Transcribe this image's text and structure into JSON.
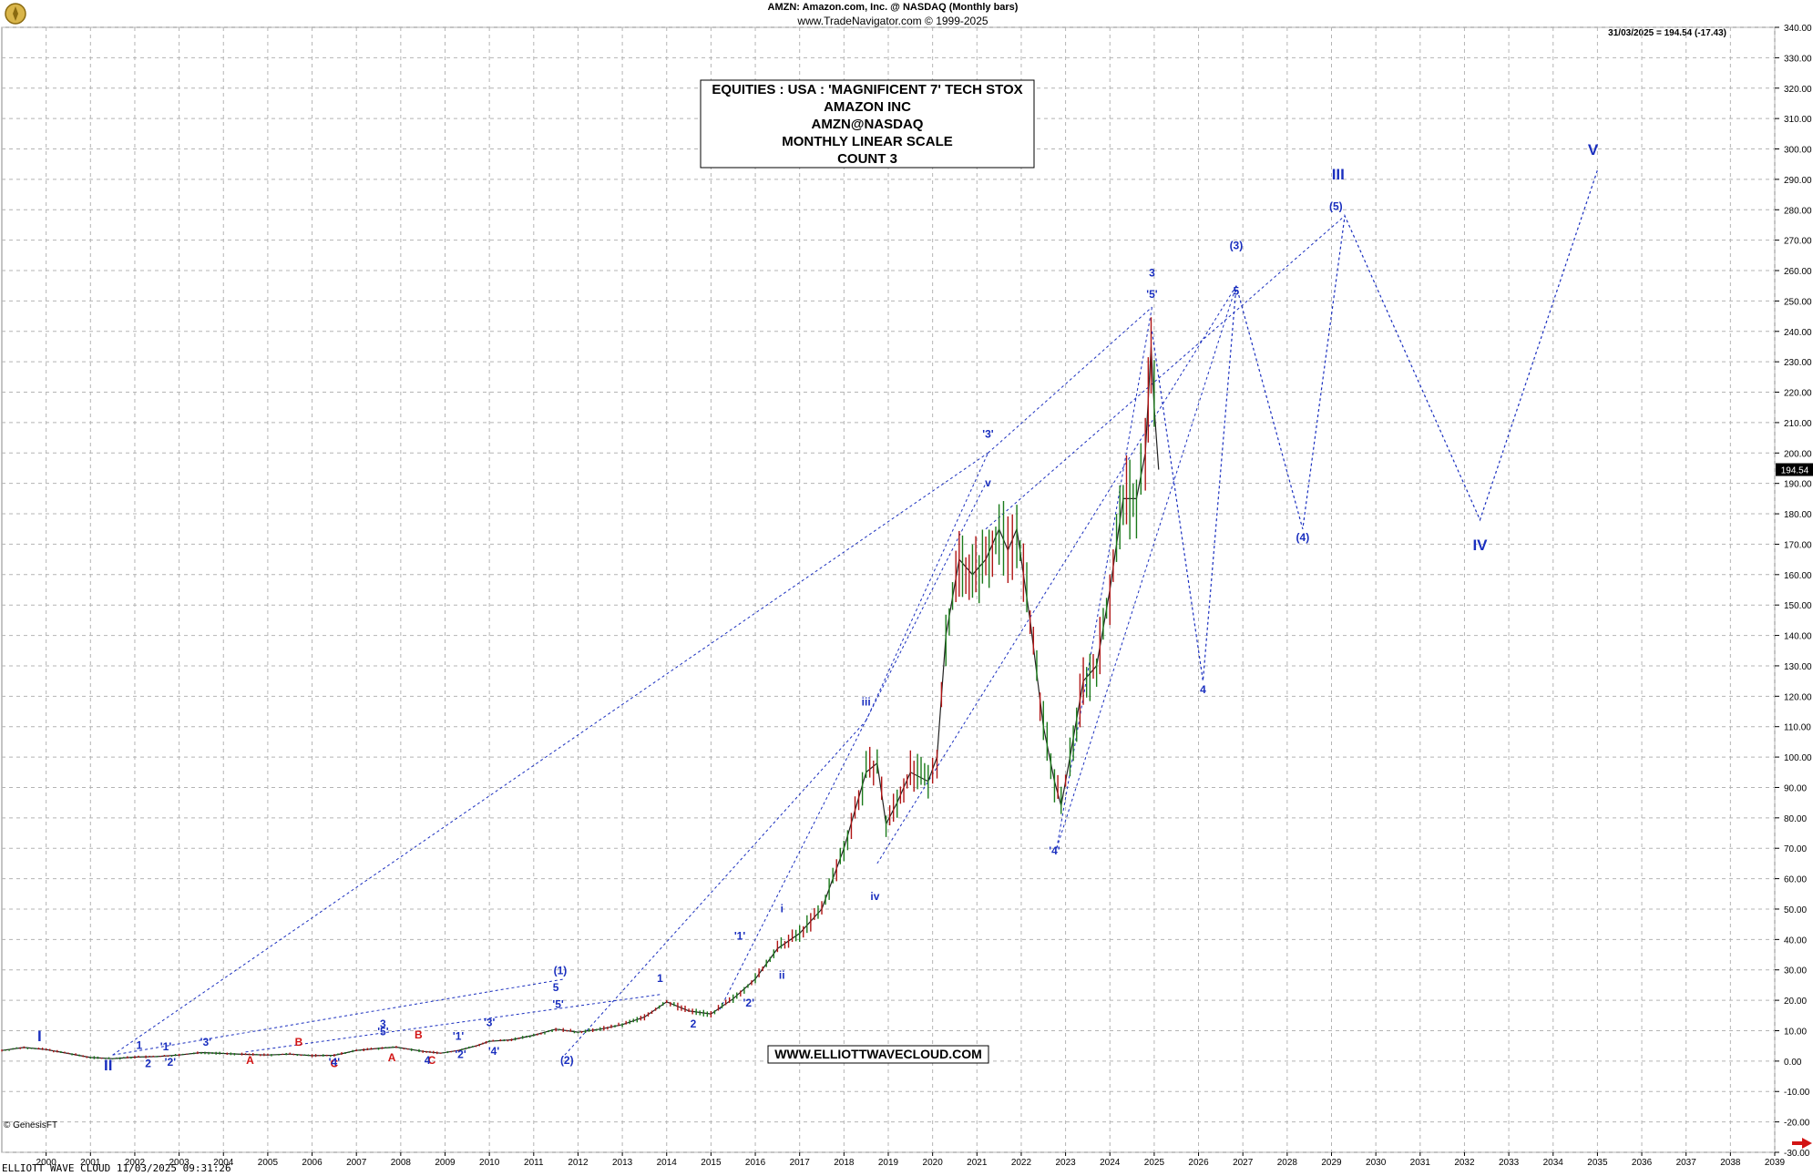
{
  "header": {
    "line1": "AMZN:  Amazon.com, Inc. @ NASDAQ  (Monthly bars)",
    "line2": "www.TradeNavigator.com © 1999-2025"
  },
  "last_value_label": "31/03/2025 = 194.54 (-17.43)",
  "price_badge": "194.54",
  "footer": "ELLIOTT WAVE CLOUD    11/03/2025 09:31:26",
  "corner_label": "© GenesisFT",
  "colors": {
    "wave_blue": "#1a2fbf",
    "wave_red": "#d21414",
    "grid": "#b4b4b4",
    "bar_up": "#1a7a1a",
    "bar_down": "#b01414",
    "arrow": "#d21414"
  },
  "chart_data": {
    "type": "line",
    "scale": "linear",
    "grid": true,
    "title_box": [
      "EQUITIES : USA : 'MAGNIFICENT 7' TECH STOX",
      "AMAZON INC",
      "AMZN@NASDAQ",
      "MONTHLY LINEAR SCALE",
      "COUNT 3"
    ],
    "watermark": "WWW.ELLIOTTWAVECLOUD.COM",
    "x_ticks": [
      "2000",
      "2001",
      "2002",
      "2003",
      "2004",
      "2005",
      "2006",
      "2007",
      "2008",
      "2009",
      "2010",
      "2011",
      "2012",
      "2013",
      "2014",
      "2015",
      "2016",
      "2017",
      "2018",
      "2019",
      "2020",
      "2021",
      "2022",
      "2023",
      "2024",
      "2025",
      "2026",
      "2027",
      "2028",
      "2029",
      "2030",
      "2031",
      "2032",
      "2033",
      "2034",
      "2035",
      "2036",
      "2037",
      "2038",
      "2039"
    ],
    "xlim": [
      1999.0,
      2039.0
    ],
    "ylim": [
      -30,
      340
    ],
    "y_ticks": [
      340,
      330,
      320,
      310,
      300,
      290,
      280,
      270,
      260,
      250,
      240,
      230,
      220,
      210,
      200,
      190,
      180,
      170,
      160,
      150,
      140,
      130,
      120,
      110,
      100,
      90,
      80,
      70,
      60,
      50,
      40,
      30,
      20,
      10,
      0,
      -10,
      -20,
      -30
    ],
    "price_series": {
      "name": "",
      "x": [
        1999.0,
        1999.5,
        2000.0,
        2000.5,
        2001.0,
        2001.5,
        2002.0,
        2002.5,
        2003.0,
        2003.5,
        2004.0,
        2004.5,
        2005.0,
        2005.5,
        2006.0,
        2006.5,
        2007.0,
        2007.5,
        2007.9,
        2008.5,
        2008.9,
        2009.3,
        2009.7,
        2010.0,
        2010.5,
        2011.0,
        2011.5,
        2012.0,
        2012.5,
        2013.0,
        2013.5,
        2014.0,
        2014.5,
        2015.0,
        2015.5,
        2016.0,
        2016.5,
        2017.0,
        2017.5,
        2018.0,
        2018.5,
        2018.75,
        2018.95,
        2019.2,
        2019.5,
        2019.9,
        2020.1,
        2020.3,
        2020.6,
        2020.9,
        2021.2,
        2021.5,
        2021.7,
        2021.9,
        2022.2,
        2022.5,
        2022.75,
        2022.9,
        2023.1,
        2023.4,
        2023.7,
        2024.0,
        2024.3,
        2024.6,
        2024.8,
        2024.93,
        2025.0,
        2025.1
      ],
      "y": [
        3.5,
        4.5,
        3.8,
        2.5,
        1.2,
        0.8,
        1.3,
        1.5,
        2.0,
        2.8,
        2.5,
        2.2,
        2.0,
        2.3,
        1.8,
        1.9,
        3.5,
        4.2,
        4.6,
        3.2,
        2.6,
        3.5,
        5.0,
        6.5,
        7.0,
        8.5,
        10.5,
        9.5,
        10.5,
        12.0,
        14.5,
        19.5,
        16.5,
        15.5,
        20.5,
        27.0,
        37.0,
        42.0,
        50.0,
        70.0,
        95.0,
        98.0,
        78.0,
        85.0,
        95.0,
        92.0,
        100.0,
        140.0,
        165.0,
        160.0,
        165.0,
        175.0,
        168.0,
        175.0,
        145.0,
        110.0,
        92.0,
        84.0,
        100.0,
        125.0,
        130.0,
        155.0,
        185.0,
        185.0,
        200.0,
        235.0,
        215.0,
        194.54
      ]
    },
    "projection_series": {
      "name": "",
      "x": [
        2024.95,
        2026.1,
        2026.85,
        2028.35,
        2029.3,
        2032.35,
        2035.0
      ],
      "y": [
        240,
        125,
        255,
        175,
        278,
        178,
        293
      ]
    },
    "trend_lines": [
      {
        "from": [
          2001.5,
          2.0
        ],
        "to": [
          2021.25,
          200
        ]
      },
      {
        "from": [
          2001.5,
          2.0
        ],
        "to": [
          2011.7,
          27.0
        ]
      },
      {
        "from": [
          2004.5,
          3.0
        ],
        "to": [
          2013.9,
          22.0
        ]
      },
      {
        "from": [
          2011.7,
          2.0
        ],
        "to": [
          2018.5,
          112.0
        ]
      },
      {
        "from": [
          2015.2,
          17.0
        ],
        "to": [
          2021.2,
          190.0
        ]
      },
      {
        "from": [
          2018.5,
          112.0
        ],
        "to": [
          2021.25,
          200
        ]
      },
      {
        "from": [
          2021.25,
          200
        ],
        "to": [
          2024.95,
          248
        ]
      },
      {
        "from": [
          2022.8,
          70.0
        ],
        "to": [
          2024.95,
          248
        ]
      },
      {
        "from": [
          2018.75,
          65.0
        ],
        "to": [
          2026.85,
          255
        ]
      },
      {
        "from": [
          2021.2,
          175.0
        ],
        "to": [
          2029.3,
          278
        ]
      },
      {
        "from": [
          2022.8,
          70.0
        ],
        "to": [
          2026.85,
          255
        ]
      }
    ],
    "wave_labels": [
      {
        "text": "I",
        "x": 1999.85,
        "y": 6.5,
        "color": "blue",
        "size": "large"
      },
      {
        "text": "II",
        "x": 2001.4,
        "y": -3.0,
        "color": "blue",
        "size": "large"
      },
      {
        "text": "1",
        "x": 2002.1,
        "y": 4.0,
        "color": "blue"
      },
      {
        "text": "2",
        "x": 2002.3,
        "y": -2.0,
        "color": "blue"
      },
      {
        "text": "'1'",
        "x": 2002.7,
        "y": 3.5,
        "color": "blue"
      },
      {
        "text": "'2'",
        "x": 2002.8,
        "y": -1.5,
        "color": "blue"
      },
      {
        "text": "'3'",
        "x": 2003.6,
        "y": 5.0,
        "color": "blue"
      },
      {
        "text": "A",
        "x": 2004.6,
        "y": -1.0,
        "color": "red"
      },
      {
        "text": "B",
        "x": 2005.7,
        "y": 5.0,
        "color": "red"
      },
      {
        "text": "C",
        "x": 2006.5,
        "y": -2.0,
        "color": "red"
      },
      {
        "text": "'4'",
        "x": 2006.5,
        "y": -1.5,
        "color": "blue"
      },
      {
        "text": "3",
        "x": 2007.6,
        "y": 11.0,
        "color": "blue"
      },
      {
        "text": "'5'",
        "x": 2007.6,
        "y": 8.5,
        "color": "blue"
      },
      {
        "text": "A",
        "x": 2007.8,
        "y": 0.0,
        "color": "red"
      },
      {
        "text": "B",
        "x": 2008.4,
        "y": 7.5,
        "color": "red"
      },
      {
        "text": "C",
        "x": 2008.7,
        "y": -1.0,
        "color": "red"
      },
      {
        "text": "4",
        "x": 2008.6,
        "y": -1.0,
        "color": "blue"
      },
      {
        "text": "'1'",
        "x": 2009.3,
        "y": 7.0,
        "color": "blue"
      },
      {
        "text": "'2'",
        "x": 2009.35,
        "y": 1.0,
        "color": "blue"
      },
      {
        "text": "'3'",
        "x": 2010.0,
        "y": 11.5,
        "color": "blue"
      },
      {
        "text": "'4'",
        "x": 2010.1,
        "y": 2.0,
        "color": "blue"
      },
      {
        "text": "(1)",
        "x": 2011.6,
        "y": 28.5,
        "color": "blue"
      },
      {
        "text": "5",
        "x": 2011.5,
        "y": 23.0,
        "color": "blue"
      },
      {
        "text": "'5'",
        "x": 2011.55,
        "y": 17.5,
        "color": "blue"
      },
      {
        "text": "(2)",
        "x": 2011.75,
        "y": -1.0,
        "color": "blue"
      },
      {
        "text": "1",
        "x": 2013.85,
        "y": 26.0,
        "color": "blue"
      },
      {
        "text": "2",
        "x": 2014.6,
        "y": 11.0,
        "color": "blue"
      },
      {
        "text": "'1'",
        "x": 2015.65,
        "y": 40.0,
        "color": "blue"
      },
      {
        "text": "'2'",
        "x": 2015.85,
        "y": 18.0,
        "color": "blue"
      },
      {
        "text": "i",
        "x": 2016.6,
        "y": 49.0,
        "color": "blue"
      },
      {
        "text": "ii",
        "x": 2016.6,
        "y": 27.0,
        "color": "blue"
      },
      {
        "text": "iii",
        "x": 2018.5,
        "y": 117.0,
        "color": "blue"
      },
      {
        "text": "iv",
        "x": 2018.7,
        "y": 53.0,
        "color": "blue"
      },
      {
        "text": "'3'",
        "x": 2021.25,
        "y": 205.0,
        "color": "blue"
      },
      {
        "text": "v",
        "x": 2021.25,
        "y": 189.0,
        "color": "blue"
      },
      {
        "text": "'4'",
        "x": 2022.75,
        "y": 68.0,
        "color": "blue"
      },
      {
        "text": "3",
        "x": 2024.95,
        "y": 258.0,
        "color": "blue"
      },
      {
        "text": "'5'",
        "x": 2024.95,
        "y": 251.0,
        "color": "blue"
      },
      {
        "text": "4",
        "x": 2026.1,
        "y": 121.0,
        "color": "blue"
      },
      {
        "text": "(3)",
        "x": 2026.85,
        "y": 267.0,
        "color": "blue"
      },
      {
        "text": "5",
        "x": 2026.85,
        "y": 252.0,
        "color": "blue"
      },
      {
        "text": "(4)",
        "x": 2028.35,
        "y": 171.0,
        "color": "blue"
      },
      {
        "text": "III",
        "x": 2029.15,
        "y": 290.0,
        "color": "blue",
        "size": "large"
      },
      {
        "text": "(5)",
        "x": 2029.1,
        "y": 280.0,
        "color": "blue"
      },
      {
        "text": "IV",
        "x": 2032.35,
        "y": 168.0,
        "color": "blue",
        "size": "large"
      },
      {
        "text": "V",
        "x": 2034.9,
        "y": 298.0,
        "color": "blue",
        "size": "large"
      }
    ]
  }
}
